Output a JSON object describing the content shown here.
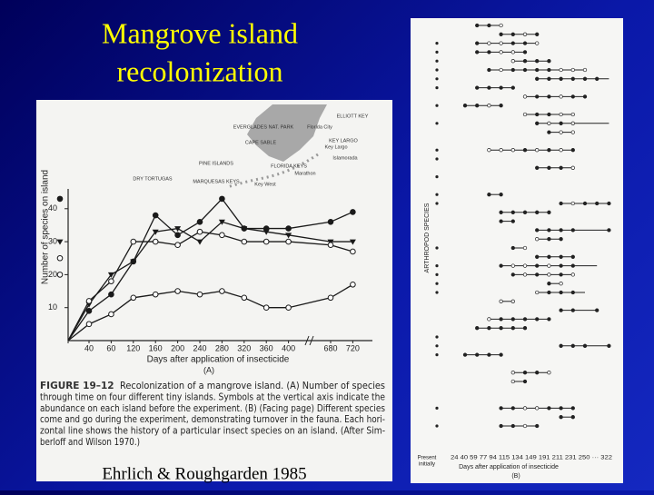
{
  "slide": {
    "title_lines": [
      "Mangrove island",
      "recolonization"
    ],
    "citation": "Ehrlich & Roughgarden 1985"
  },
  "chart_data": {
    "type": "line",
    "y_label": "Number of species on island",
    "x_label": "Days after application of insecticide",
    "panel_label": "(A)",
    "categories": [
      null,
      "40",
      "60",
      "120",
      "160",
      "200",
      "240",
      "280",
      "320",
      "360",
      "400",
      "680",
      "720"
    ],
    "xbreak": true,
    "ylim": [
      0,
      46
    ],
    "yticks": [
      10,
      20,
      30,
      40
    ],
    "series": [
      {
        "marker": "filled-circle",
        "color": "#1a1a1a",
        "initial": 43,
        "values": [
          0,
          9,
          14,
          24,
          38,
          32,
          36,
          43,
          34,
          34,
          34,
          36,
          39
        ]
      },
      {
        "marker": "triangle",
        "color": "#1a1a1a",
        "initial": 30,
        "values": [
          0,
          11,
          20,
          24,
          33,
          34,
          30,
          36,
          34,
          33,
          32,
          30,
          30
        ]
      },
      {
        "marker": "open-circle",
        "color": "#1a1a1a",
        "initial": 25,
        "values": [
          0,
          12,
          18,
          30,
          30,
          29,
          33,
          32,
          30,
          30,
          30,
          29,
          27
        ]
      },
      {
        "marker": "open-circle",
        "color": "#1a1a1a",
        "initial": 20,
        "values": [
          0,
          5,
          8,
          13,
          14,
          15,
          14,
          15,
          13,
          10,
          10,
          13,
          17
        ]
      }
    ],
    "map_labels": [
      "ELLIOTT KEY",
      "EVERGLADES NAT. PARK",
      "CAPE SABLE",
      "Florida City",
      "KEY LARGO",
      "Key Largo",
      "Islamorada",
      "Marathon",
      "Key West",
      "PINE ISLANDS",
      "DRY TORTUGAS",
      "MARQUESAS KEYS",
      "FLORIDA KEYS"
    ],
    "figure_label": "FIGURE 19–12",
    "caption_lines": [
      "Recolonization of a mangrove island. (A) Number of species",
      "through time on four different tiny islands. Symbols at the vertical axis indicate the",
      "abundance on each island before the experiment. (B) (Facing page) Different species",
      "come and go during the experiment, demonstrating turnover in the fauna. Each hori-",
      "zontal line shows the history of a particular insect species on an island. (After Sim-",
      "berloff and Wilson 1970.)"
    ]
  },
  "panel_b": {
    "y_label": "ARTHROPOD SPECIES",
    "initial_label": [
      "Present",
      "initially"
    ],
    "day_ticks": "24  40  59  77  94  115 134 149 191 211 231 250 ··· 322",
    "x_label": "Days after application of insecticide",
    "panel_label": "(B)"
  }
}
